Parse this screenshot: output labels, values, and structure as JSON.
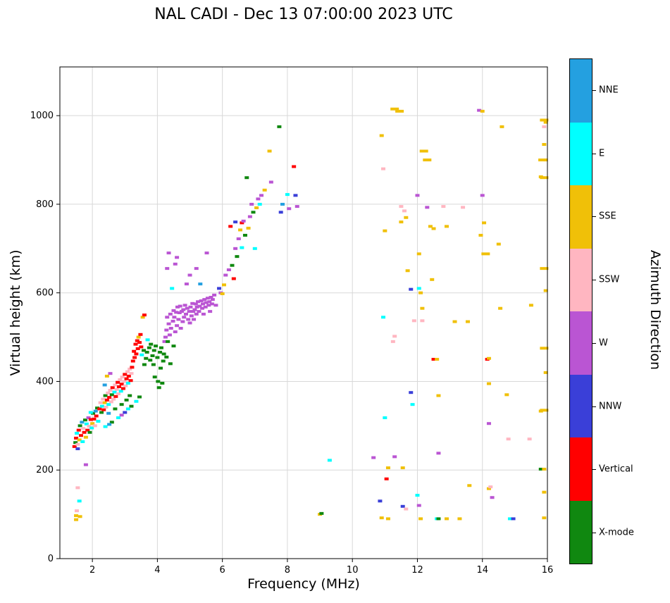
{
  "title": "NAL CADI - Dec 13 07:00:00 2023 UTC",
  "chart_data": {
    "type": "scatter",
    "title": "NAL CADI - Dec 13 07:00:00 2023 UTC",
    "xlabel": "Frequency (MHz)",
    "ylabel": "Virtual height (km)",
    "colorbar_label": "Azimuth Direction",
    "xlim": [
      1.0,
      16.0
    ],
    "ylim": [
      0,
      1110
    ],
    "x_ticks": [
      2,
      4,
      6,
      8,
      10,
      12,
      14,
      16
    ],
    "y_ticks": [
      0,
      200,
      400,
      600,
      800,
      1000
    ],
    "grid": true,
    "legend_position": "right-colorbar",
    "categories": [
      {
        "label": "NNE",
        "color": "#24A0E0"
      },
      {
        "label": "E",
        "color": "#00FFFF"
      },
      {
        "label": "SSE",
        "color": "#F0C008"
      },
      {
        "label": "SSW",
        "color": "#FFB6C1"
      },
      {
        "label": "W",
        "color": "#BA55D3"
      },
      {
        "label": "NNW",
        "color": "#3A3FD8"
      },
      {
        "label": "Vertical",
        "color": "#FF0000"
      },
      {
        "label": "X-mode",
        "color": "#108810"
      }
    ],
    "points": [
      [
        1.5,
        88,
        2
      ],
      [
        1.5,
        97,
        2
      ],
      [
        1.52,
        108,
        3
      ],
      [
        1.55,
        160,
        3
      ],
      [
        1.6,
        130,
        1
      ],
      [
        1.62,
        95,
        2
      ],
      [
        1.8,
        212,
        4
      ],
      [
        1.45,
        253,
        6
      ],
      [
        1.48,
        262,
        7
      ],
      [
        1.5,
        272,
        6
      ],
      [
        1.52,
        283,
        1
      ],
      [
        1.55,
        258,
        3
      ],
      [
        1.58,
        290,
        6
      ],
      [
        1.6,
        268,
        2
      ],
      [
        1.62,
        300,
        7
      ],
      [
        1.65,
        278,
        6
      ],
      [
        1.68,
        308,
        0
      ],
      [
        1.7,
        264,
        1
      ],
      [
        1.72,
        294,
        3
      ],
      [
        1.75,
        285,
        6
      ],
      [
        1.78,
        313,
        7
      ],
      [
        1.8,
        274,
        2
      ],
      [
        1.82,
        304,
        1
      ],
      [
        1.85,
        290,
        6
      ],
      [
        1.88,
        318,
        4
      ],
      [
        1.9,
        299,
        3
      ],
      [
        1.92,
        285,
        7
      ],
      [
        1.95,
        314,
        6
      ],
      [
        1.98,
        295,
        1
      ],
      [
        2.0,
        305,
        2
      ],
      [
        2.02,
        328,
        7
      ],
      [
        2.05,
        315,
        6
      ],
      [
        2.08,
        300,
        3
      ],
      [
        2.1,
        333,
        0
      ],
      [
        2.12,
        322,
        6
      ],
      [
        2.15,
        340,
        7
      ],
      [
        2.18,
        310,
        1
      ],
      [
        1.55,
        248,
        5
      ],
      [
        1.95,
        330,
        1
      ],
      [
        2.22,
        338,
        6
      ],
      [
        2.25,
        352,
        3
      ],
      [
        2.28,
        330,
        7
      ],
      [
        2.3,
        344,
        1
      ],
      [
        2.33,
        360,
        3
      ],
      [
        2.35,
        336,
        6
      ],
      [
        2.38,
        352,
        2
      ],
      [
        2.4,
        368,
        7
      ],
      [
        2.42,
        342,
        3
      ],
      [
        2.45,
        358,
        6
      ],
      [
        2.48,
        374,
        3
      ],
      [
        2.5,
        348,
        1
      ],
      [
        2.52,
        364,
        6
      ],
      [
        2.55,
        380,
        3
      ],
      [
        2.58,
        354,
        3
      ],
      [
        2.6,
        370,
        7
      ],
      [
        2.62,
        386,
        6
      ],
      [
        2.65,
        360,
        3
      ],
      [
        2.68,
        376,
        1
      ],
      [
        2.7,
        392,
        3
      ],
      [
        2.72,
        366,
        6
      ],
      [
        2.75,
        382,
        3
      ],
      [
        2.78,
        398,
        6
      ],
      [
        2.8,
        372,
        3
      ],
      [
        2.82,
        388,
        6
      ],
      [
        2.85,
        404,
        3
      ],
      [
        2.88,
        378,
        1
      ],
      [
        2.9,
        394,
        6
      ],
      [
        2.92,
        410,
        3
      ],
      [
        2.95,
        384,
        6
      ],
      [
        2.98,
        400,
        3
      ],
      [
        3.0,
        416,
        6
      ],
      [
        3.02,
        390,
        3
      ],
      [
        3.05,
        406,
        6
      ],
      [
        3.08,
        422,
        3
      ],
      [
        3.1,
        396,
        1
      ],
      [
        3.12,
        412,
        6
      ],
      [
        3.15,
        428,
        3
      ],
      [
        3.18,
        402,
        6
      ],
      [
        3.2,
        418,
        3
      ],
      [
        2.5,
        328,
        0
      ],
      [
        2.7,
        338,
        7
      ],
      [
        2.9,
        348,
        7
      ],
      [
        3.05,
        358,
        7
      ],
      [
        3.15,
        368,
        7
      ],
      [
        2.45,
        412,
        2
      ],
      [
        2.55,
        418,
        4
      ],
      [
        2.38,
        392,
        0
      ],
      [
        2.4,
        298,
        1
      ],
      [
        2.6,
        308,
        7
      ],
      [
        2.8,
        318,
        1
      ],
      [
        3.0,
        330,
        5
      ],
      [
        3.2,
        344,
        7
      ],
      [
        3.35,
        355,
        1
      ],
      [
        3.45,
        365,
        7
      ],
      [
        2.52,
        303,
        0
      ],
      [
        2.9,
        324,
        4
      ],
      [
        3.1,
        338,
        1
      ],
      [
        3.22,
        432,
        6
      ],
      [
        3.25,
        446,
        6
      ],
      [
        3.28,
        468,
        6
      ],
      [
        3.3,
        454,
        6
      ],
      [
        3.33,
        484,
        6
      ],
      [
        3.35,
        462,
        6
      ],
      [
        3.38,
        492,
        6
      ],
      [
        3.4,
        474,
        6
      ],
      [
        3.42,
        500,
        2
      ],
      [
        3.45,
        488,
        6
      ],
      [
        3.48,
        506,
        6
      ],
      [
        3.5,
        478,
        6
      ],
      [
        3.52,
        460,
        1
      ],
      [
        3.55,
        545,
        2
      ],
      [
        3.6,
        550,
        6
      ],
      [
        3.58,
        470,
        7
      ],
      [
        3.6,
        438,
        7
      ],
      [
        3.65,
        452,
        7
      ],
      [
        3.68,
        466,
        7
      ],
      [
        3.7,
        494,
        1
      ],
      [
        3.75,
        476,
        7
      ],
      [
        3.78,
        448,
        7
      ],
      [
        3.8,
        484,
        7
      ],
      [
        3.85,
        458,
        7
      ],
      [
        3.88,
        438,
        7
      ],
      [
        3.9,
        470,
        7
      ],
      [
        3.92,
        410,
        7
      ],
      [
        3.95,
        480,
        7
      ],
      [
        4.0,
        454,
        7
      ],
      [
        4.02,
        400,
        7
      ],
      [
        4.05,
        386,
        7
      ],
      [
        4.08,
        466,
        7
      ],
      [
        4.1,
        430,
        7
      ],
      [
        4.12,
        476,
        7
      ],
      [
        4.15,
        396,
        7
      ],
      [
        4.18,
        446,
        7
      ],
      [
        4.2,
        462,
        7
      ],
      [
        4.22,
        490,
        4
      ],
      [
        4.25,
        500,
        4
      ],
      [
        4.28,
        516,
        4
      ],
      [
        4.3,
        545,
        4
      ],
      [
        4.32,
        490,
        7
      ],
      [
        4.35,
        530,
        4
      ],
      [
        4.38,
        505,
        4
      ],
      [
        4.4,
        552,
        4
      ],
      [
        4.42,
        520,
        4
      ],
      [
        4.45,
        610,
        1
      ],
      [
        4.48,
        536,
        4
      ],
      [
        4.5,
        560,
        4
      ],
      [
        4.5,
        480,
        7
      ],
      [
        4.52,
        545,
        4
      ],
      [
        4.55,
        512,
        4
      ],
      [
        4.58,
        556,
        4
      ],
      [
        4.6,
        526,
        4
      ],
      [
        4.62,
        568,
        4
      ],
      [
        4.65,
        540,
        4
      ],
      [
        4.68,
        555,
        4
      ],
      [
        4.7,
        570,
        4
      ],
      [
        4.72,
        520,
        4
      ],
      [
        4.75,
        558,
        4
      ],
      [
        4.78,
        535,
        4
      ],
      [
        4.8,
        562,
        4
      ],
      [
        4.82,
        545,
        4
      ],
      [
        4.85,
        572,
        4
      ],
      [
        4.88,
        552,
        4
      ],
      [
        4.9,
        620,
        4
      ],
      [
        4.92,
        565,
        4
      ],
      [
        4.95,
        540,
        4
      ],
      [
        4.98,
        558,
        4
      ],
      [
        5.0,
        532,
        4
      ],
      [
        5.02,
        568,
        4
      ],
      [
        5.05,
        548,
        4
      ],
      [
        5.08,
        576,
        4
      ],
      [
        5.1,
        558,
        4
      ],
      [
        5.12,
        540,
        4
      ],
      [
        5.15,
        562,
        4
      ],
      [
        5.18,
        575,
        4
      ],
      [
        5.2,
        552,
        4
      ],
      [
        5.22,
        568,
        4
      ],
      [
        5.25,
        580,
        4
      ],
      [
        5.28,
        558,
        4
      ],
      [
        5.3,
        570,
        4
      ],
      [
        5.32,
        620,
        0
      ],
      [
        5.35,
        582,
        4
      ],
      [
        5.38,
        565,
        4
      ],
      [
        5.4,
        575,
        4
      ],
      [
        5.42,
        552,
        4
      ],
      [
        5.45,
        585,
        4
      ],
      [
        5.48,
        568,
        4
      ],
      [
        5.5,
        578,
        4
      ],
      [
        5.52,
        690,
        4
      ],
      [
        5.55,
        588,
        4
      ],
      [
        5.58,
        572,
        4
      ],
      [
        5.6,
        580,
        4
      ],
      [
        5.62,
        558,
        4
      ],
      [
        5.65,
        590,
        4
      ],
      [
        5.68,
        575,
        4
      ],
      [
        5.7,
        585,
        4
      ],
      [
        5.75,
        595,
        4
      ],
      [
        5.8,
        572,
        4
      ],
      [
        5.0,
        640,
        4
      ],
      [
        5.2,
        655,
        4
      ],
      [
        4.3,
        655,
        4
      ],
      [
        4.35,
        690,
        4
      ],
      [
        4.6,
        680,
        4
      ],
      [
        4.55,
        665,
        4
      ],
      [
        4.28,
        455,
        7
      ],
      [
        4.4,
        440,
        7
      ],
      [
        5.9,
        610,
        5
      ],
      [
        5.95,
        600,
        4
      ],
      [
        6.0,
        598,
        2
      ],
      [
        6.05,
        618,
        2
      ],
      [
        6.1,
        640,
        4
      ],
      [
        6.2,
        652,
        4
      ],
      [
        6.3,
        662,
        7
      ],
      [
        6.35,
        632,
        6
      ],
      [
        6.4,
        700,
        4
      ],
      [
        6.4,
        760,
        5
      ],
      [
        6.45,
        682,
        7
      ],
      [
        6.5,
        722,
        4
      ],
      [
        6.55,
        742,
        2
      ],
      [
        6.6,
        758,
        6
      ],
      [
        6.6,
        702,
        1
      ],
      [
        6.65,
        762,
        4
      ],
      [
        6.7,
        730,
        7
      ],
      [
        6.75,
        860,
        7
      ],
      [
        6.8,
        746,
        2
      ],
      [
        6.85,
        772,
        4
      ],
      [
        6.9,
        800,
        4
      ],
      [
        6.95,
        782,
        7
      ],
      [
        7.0,
        700,
        1
      ],
      [
        7.05,
        792,
        2
      ],
      [
        7.1,
        812,
        4
      ],
      [
        7.15,
        800,
        1
      ],
      [
        7.2,
        820,
        4
      ],
      [
        7.3,
        832,
        2
      ],
      [
        7.45,
        920,
        2
      ],
      [
        7.5,
        850,
        4
      ],
      [
        7.75,
        975,
        7
      ],
      [
        7.8,
        782,
        5
      ],
      [
        7.85,
        800,
        0
      ],
      [
        8.0,
        822,
        1
      ],
      [
        8.05,
        790,
        4
      ],
      [
        8.2,
        885,
        6
      ],
      [
        8.25,
        820,
        5
      ],
      [
        8.3,
        795,
        4
      ],
      [
        6.25,
        750,
        6
      ],
      [
        9.0,
        100,
        2
      ],
      [
        9.05,
        102,
        7
      ],
      [
        9.3,
        222,
        1
      ],
      [
        10.65,
        228,
        4
      ],
      [
        10.85,
        130,
        5
      ],
      [
        10.9,
        92,
        2
      ],
      [
        10.9,
        955,
        2
      ],
      [
        10.95,
        880,
        3
      ],
      [
        11.0,
        318,
        1
      ],
      [
        11.0,
        740,
        2
      ],
      [
        10.95,
        545,
        1
      ],
      [
        11.05,
        180,
        6
      ],
      [
        11.1,
        205,
        2
      ],
      [
        11.1,
        90,
        2
      ],
      [
        11.3,
        1015,
        2,
        12
      ],
      [
        11.45,
        1010,
        2,
        12
      ],
      [
        11.25,
        490,
        3
      ],
      [
        11.3,
        502,
        3
      ],
      [
        11.3,
        230,
        4
      ],
      [
        11.5,
        760,
        2
      ],
      [
        11.5,
        795,
        3
      ],
      [
        11.55,
        118,
        5
      ],
      [
        11.65,
        112,
        3
      ],
      [
        11.55,
        205,
        2
      ],
      [
        11.6,
        785,
        3
      ],
      [
        11.65,
        770,
        2
      ],
      [
        11.7,
        650,
        2
      ],
      [
        11.8,
        608,
        5
      ],
      [
        11.8,
        375,
        5
      ],
      [
        11.85,
        348,
        1
      ],
      [
        11.9,
        537,
        3
      ],
      [
        12.0,
        820,
        4
      ],
      [
        12.05,
        610,
        1
      ],
      [
        12.05,
        688,
        2
      ],
      [
        12.0,
        143,
        1
      ],
      [
        12.05,
        120,
        4
      ],
      [
        12.1,
        90,
        2
      ],
      [
        12.1,
        600,
        2
      ],
      [
        12.15,
        565,
        2
      ],
      [
        12.15,
        537,
        3
      ],
      [
        12.2,
        920,
        2,
        12
      ],
      [
        12.3,
        900,
        2,
        12
      ],
      [
        12.3,
        793,
        4
      ],
      [
        12.4,
        750,
        2
      ],
      [
        12.5,
        745,
        2
      ],
      [
        12.45,
        630,
        2
      ],
      [
        12.5,
        450,
        6
      ],
      [
        12.6,
        450,
        2
      ],
      [
        12.65,
        368,
        2
      ],
      [
        12.65,
        238,
        4
      ],
      [
        12.6,
        90,
        1
      ],
      [
        12.65,
        90,
        7
      ],
      [
        12.9,
        90,
        2
      ],
      [
        12.8,
        795,
        3
      ],
      [
        12.9,
        750,
        2
      ],
      [
        13.15,
        535,
        2
      ],
      [
        13.3,
        90,
        2
      ],
      [
        13.4,
        793,
        3
      ],
      [
        13.6,
        165,
        2
      ],
      [
        13.55,
        535,
        2
      ],
      [
        13.9,
        1012,
        4
      ],
      [
        14.0,
        1010,
        2
      ],
      [
        13.95,
        730,
        2
      ],
      [
        14.05,
        758,
        2
      ],
      [
        14.0,
        820,
        4
      ],
      [
        14.1,
        688,
        2,
        12
      ],
      [
        14.15,
        450,
        6
      ],
      [
        14.2,
        452,
        2
      ],
      [
        14.2,
        395,
        2
      ],
      [
        14.2,
        305,
        4
      ],
      [
        14.2,
        158,
        2
      ],
      [
        14.25,
        162,
        3
      ],
      [
        14.3,
        138,
        4
      ],
      [
        14.6,
        975,
        2
      ],
      [
        14.5,
        710,
        2
      ],
      [
        14.55,
        565,
        2
      ],
      [
        14.75,
        370,
        2
      ],
      [
        14.8,
        270,
        3
      ],
      [
        14.85,
        90,
        1
      ],
      [
        14.95,
        90,
        5
      ],
      [
        15.45,
        270,
        3
      ],
      [
        15.5,
        572,
        2
      ],
      [
        15.8,
        862,
        2
      ],
      [
        15.8,
        333,
        2
      ],
      [
        15.8,
        202,
        7
      ],
      [
        15.9,
        990,
        2,
        12
      ],
      [
        15.95,
        985,
        2
      ],
      [
        15.9,
        975,
        3
      ],
      [
        15.9,
        935,
        2
      ],
      [
        15.85,
        900,
        2,
        12
      ],
      [
        15.95,
        900,
        2
      ],
      [
        15.9,
        860,
        2,
        12
      ],
      [
        15.9,
        655,
        2,
        12
      ],
      [
        15.95,
        605,
        2
      ],
      [
        15.9,
        475,
        2,
        12
      ],
      [
        15.95,
        420,
        2
      ],
      [
        15.9,
        335,
        2,
        12
      ],
      [
        15.9,
        202,
        2
      ],
      [
        15.9,
        150,
        2
      ],
      [
        15.9,
        92,
        2
      ]
    ]
  }
}
